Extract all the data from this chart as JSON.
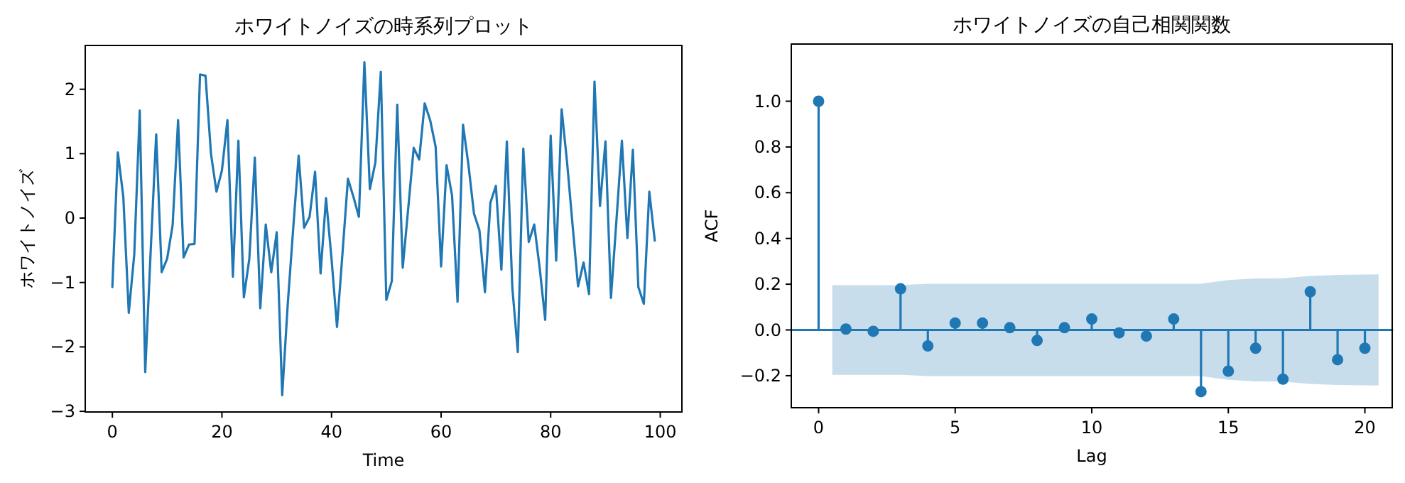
{
  "chart_data": [
    {
      "type": "line",
      "title": "ホワイトノイズの時系列プロット",
      "xlabel": "Time",
      "ylabel": "ホワイトノイズ",
      "color": "#1f77b4",
      "x": [
        0,
        1,
        2,
        3,
        4,
        5,
        6,
        7,
        8,
        9,
        10,
        11,
        12,
        13,
        14,
        15,
        16,
        17,
        18,
        19,
        20,
        21,
        22,
        23,
        24,
        25,
        26,
        27,
        28,
        29,
        30,
        31,
        32,
        33,
        34,
        35,
        36,
        37,
        38,
        39,
        40,
        41,
        42,
        43,
        44,
        45,
        46,
        47,
        48,
        49,
        50,
        51,
        52,
        53,
        54,
        55,
        56,
        57,
        58,
        59,
        60,
        61,
        62,
        63,
        64,
        65,
        66,
        67,
        68,
        69,
        70,
        71,
        72,
        73,
        74,
        75,
        76,
        77,
        78,
        79,
        80,
        81,
        82,
        83,
        84,
        85,
        86,
        87,
        88,
        89,
        90,
        91,
        92,
        93,
        94,
        95,
        96,
        97,
        98,
        99
      ],
      "values": [
        -1.07,
        1.02,
        0.33,
        -1.47,
        -0.56,
        1.67,
        -2.39,
        -0.5,
        1.3,
        -0.84,
        -0.63,
        -0.11,
        1.52,
        -0.61,
        -0.41,
        -0.4,
        2.23,
        2.21,
        1.0,
        0.41,
        0.74,
        1.52,
        -0.91,
        1.2,
        -1.23,
        -0.63,
        0.94,
        -1.4,
        -0.1,
        -0.84,
        -0.22,
        -2.75,
        -1.35,
        -0.17,
        0.97,
        -0.15,
        0.02,
        0.72,
        -0.86,
        0.31,
        -0.63,
        -1.69,
        -0.55,
        0.61,
        0.33,
        0.02,
        2.42,
        0.45,
        0.86,
        2.27,
        -1.27,
        -0.98,
        1.76,
        -0.77,
        0.15,
        1.09,
        0.91,
        1.78,
        1.52,
        1.11,
        -0.75,
        0.82,
        0.35,
        -1.3,
        1.45,
        0.82,
        0.07,
        -0.19,
        -1.15,
        0.24,
        0.5,
        -0.8,
        1.19,
        -1.08,
        -2.08,
        1.08,
        -0.37,
        -0.1,
        -0.78,
        -1.58,
        1.28,
        -0.66,
        1.69,
        0.86,
        -0.11,
        -1.06,
        -0.69,
        -1.18,
        2.12,
        0.19,
        1.19,
        -1.24,
        -0.04,
        1.2,
        -0.31,
        1.06,
        -1.07,
        -1.33,
        0.41,
        -0.35
      ],
      "xlim": [
        -4.95,
        103.95
      ],
      "ylim": [
        -3.01,
        2.68
      ],
      "xticks": [
        0,
        20,
        40,
        60,
        80,
        100
      ],
      "yticks": [
        {
          "value": -3,
          "label": "−3"
        },
        {
          "value": -2,
          "label": "−2"
        },
        {
          "value": -1,
          "label": "−1"
        },
        0,
        1,
        2
      ]
    },
    {
      "type": "lollipop",
      "title": "ホワイトノイズの自己相関関数",
      "xlabel": "Lag",
      "ylabel": "ACF",
      "series": [
        {
          "marker": "circle",
          "color": "#1f77b4",
          "x": [
            0,
            1,
            2,
            3,
            4,
            5,
            6,
            7,
            8,
            9,
            10,
            11,
            12,
            13,
            14,
            15,
            16,
            17,
            18,
            19,
            20
          ],
          "values": [
            1.0,
            0.004,
            -0.006,
            0.18,
            -0.07,
            0.03,
            0.03,
            0.01,
            -0.046,
            0.01,
            0.048,
            -0.013,
            -0.027,
            0.048,
            -0.27,
            -0.18,
            -0.08,
            -0.215,
            0.167,
            -0.13,
            -0.08
          ]
        },
        {
          "type": "line",
          "color": "#1f77b4",
          "x": [
            -1,
            0.5,
            2,
            3,
            4,
            5,
            6,
            7,
            8,
            9,
            10,
            11,
            12,
            13,
            14,
            15,
            16,
            17,
            18,
            19,
            20.5,
            21
          ],
          "values": [
            0,
            0,
            0,
            0,
            0,
            0,
            0,
            0,
            0,
            0,
            0,
            0,
            0,
            0,
            0,
            0,
            0,
            0,
            0,
            0,
            0,
            0
          ],
          "lower": [
            null,
            -0.196,
            -0.196,
            -0.196,
            -0.202,
            -0.202,
            -0.202,
            -0.202,
            -0.202,
            -0.202,
            -0.202,
            -0.202,
            -0.202,
            -0.202,
            -0.202,
            -0.218,
            -0.225,
            -0.226,
            -0.236,
            -0.241,
            -0.243,
            null
          ],
          "upper": [
            null,
            0.196,
            0.196,
            0.196,
            0.202,
            0.202,
            0.202,
            0.202,
            0.202,
            0.202,
            0.202,
            0.202,
            0.202,
            0.202,
            0.202,
            0.218,
            0.225,
            0.226,
            0.236,
            0.241,
            0.243,
            null
          ]
        }
      ],
      "xlim": [
        -1,
        21
      ],
      "ylim": [
        -0.34,
        1.25
      ],
      "xticks": [
        0,
        5,
        10,
        15,
        20
      ],
      "yticks": [
        {
          "value": -0.2,
          "label": "−0.2"
        },
        {
          "value": 0,
          "label": "0.0"
        },
        {
          "value": 0.2,
          "label": "0.2"
        },
        {
          "value": 0.4,
          "label": "0.4"
        },
        {
          "value": 0.6,
          "label": "0.6"
        },
        {
          "value": 0.8,
          "label": "0.8"
        },
        {
          "value": 1.0,
          "label": "1.0"
        }
      ]
    }
  ]
}
